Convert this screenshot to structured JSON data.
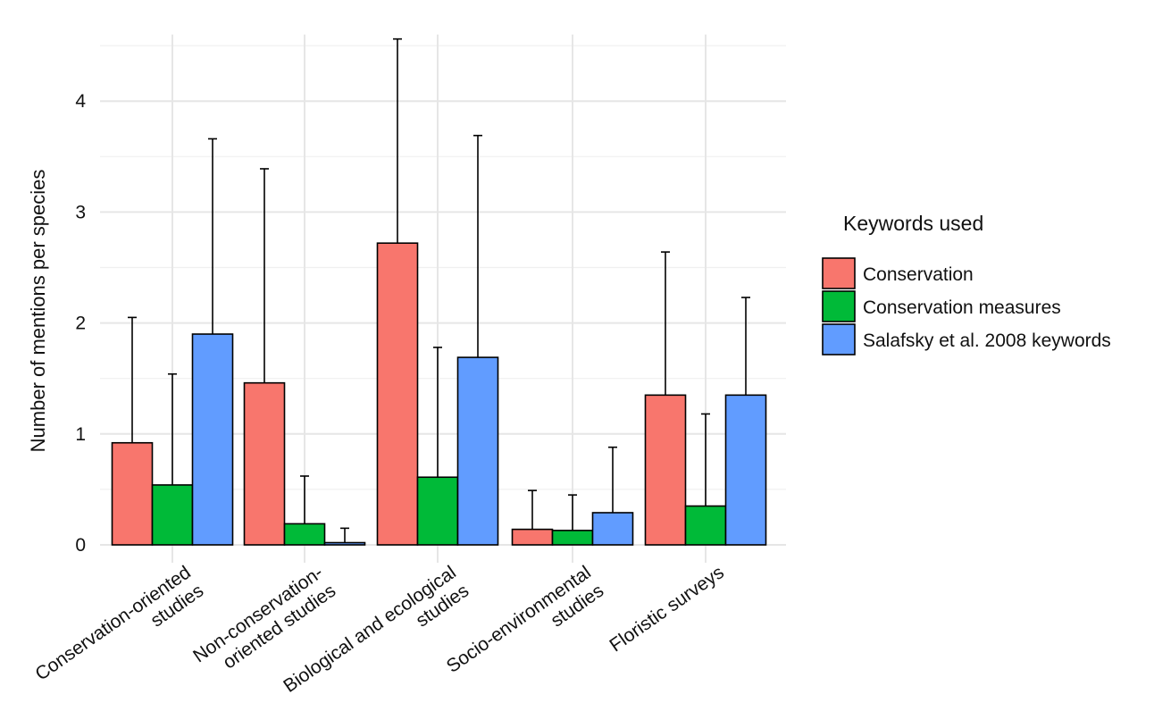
{
  "chart_data": {
    "type": "bar",
    "xlabel": "",
    "ylabel": "Number of mentions per species",
    "ylim": [
      0,
      4.6
    ],
    "yticks": [
      0,
      1,
      2,
      3,
      4
    ],
    "grid": true,
    "legend_position": "right",
    "legend_title": "Keywords used",
    "categories": [
      [
        "Conservation-oriented",
        "studies"
      ],
      [
        "Non-conservation-",
        "oriented studies"
      ],
      [
        "Biological and ecological",
        "studies"
      ],
      [
        "Socio-environmental",
        "studies"
      ],
      [
        "Floristic surveys"
      ]
    ],
    "series": [
      {
        "name": "Conservation",
        "color": "#F8766D",
        "values": [
          0.92,
          1.46,
          2.72,
          0.14,
          1.35
        ],
        "error_upper": [
          2.05,
          3.39,
          4.56,
          0.49,
          2.64
        ]
      },
      {
        "name": "Conservation measures",
        "color": "#00BA38",
        "values": [
          0.54,
          0.19,
          0.61,
          0.13,
          0.35
        ],
        "error_upper": [
          1.54,
          0.62,
          1.78,
          0.45,
          1.18
        ]
      },
      {
        "name": "Salafsky et al. 2008 keywords",
        "color": "#619CFF",
        "values": [
          1.9,
          0.02,
          1.69,
          0.29,
          1.35
        ],
        "error_upper": [
          3.66,
          0.15,
          3.69,
          0.88,
          2.23
        ]
      }
    ]
  }
}
